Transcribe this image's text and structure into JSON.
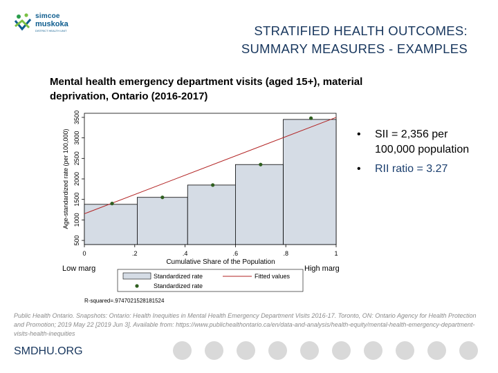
{
  "logo": {
    "line1": "simcoe",
    "line2": "muskoka",
    "line3": "DISTRICT HEALTH UNIT"
  },
  "slide_title": {
    "line1": "STRATIFIED HEALTH OUTCOMES:",
    "line2": "SUMMARY MEASURES - EXAMPLES"
  },
  "chart_heading": {
    "line1": "Mental health emergency department visits (aged 15+), material",
    "line2": "deprivation, Ontario (2016-2017)"
  },
  "chart_data": {
    "type": "bar",
    "ylabel": "Age-standardized rate (per 100,000)",
    "xlabel": "Cumulative Share of the Population",
    "yticks": [
      500,
      1000,
      1500,
      2000,
      2500,
      3000,
      3500
    ],
    "xticks": [
      "0",
      ".2",
      ".4",
      ".6",
      ".8",
      "1"
    ],
    "xlim": [
      0,
      1
    ],
    "ylim": [
      400,
      3600
    ],
    "bars": [
      {
        "x0": 0.0,
        "x1": 0.21,
        "value": 1380
      },
      {
        "x0": 0.21,
        "x1": 0.41,
        "value": 1550
      },
      {
        "x0": 0.41,
        "x1": 0.6,
        "value": 1850
      },
      {
        "x0": 0.6,
        "x1": 0.79,
        "value": 2350
      },
      {
        "x0": 0.79,
        "x1": 1.0,
        "value": 3450
      }
    ],
    "points": [
      {
        "x": 0.11,
        "y": 1400
      },
      {
        "x": 0.31,
        "y": 1550
      },
      {
        "x": 0.51,
        "y": 1850
      },
      {
        "x": 0.7,
        "y": 2350
      },
      {
        "x": 0.9,
        "y": 3480
      }
    ],
    "fitted_line": [
      {
        "x": 0,
        "y": 1150
      },
      {
        "x": 1,
        "y": 3500
      }
    ],
    "low_label": "Low marg",
    "high_label": "High marg",
    "legend": [
      "Standardized rate",
      "Fitted values",
      "Standardized rate"
    ],
    "r_squared_text": "R-squared=.9747021528181524",
    "bar_color": "#d5dce5",
    "point_color": "#2f5e1f",
    "line_color": "#b22222"
  },
  "bullets": [
    "SII = 2,356 per 100,000 population",
    "RII ratio = 3.27"
  ],
  "bullet_marker": "•",
  "citation": "Public Health Ontario. Snapshots: Ontario: Health Inequities in Mental Health Emergency Department Visits 2016-17. Toronto, ON: Ontario Agency for Health Protection and Promotion; 2019 May 22 [2019 Jun 3]. Available from: https://www.publichealthontario.ca/en/data-and-analysis/health-equity/mental-health-emergency-department-visits-health-inequities",
  "footer_org": "SMDHU.ORG"
}
